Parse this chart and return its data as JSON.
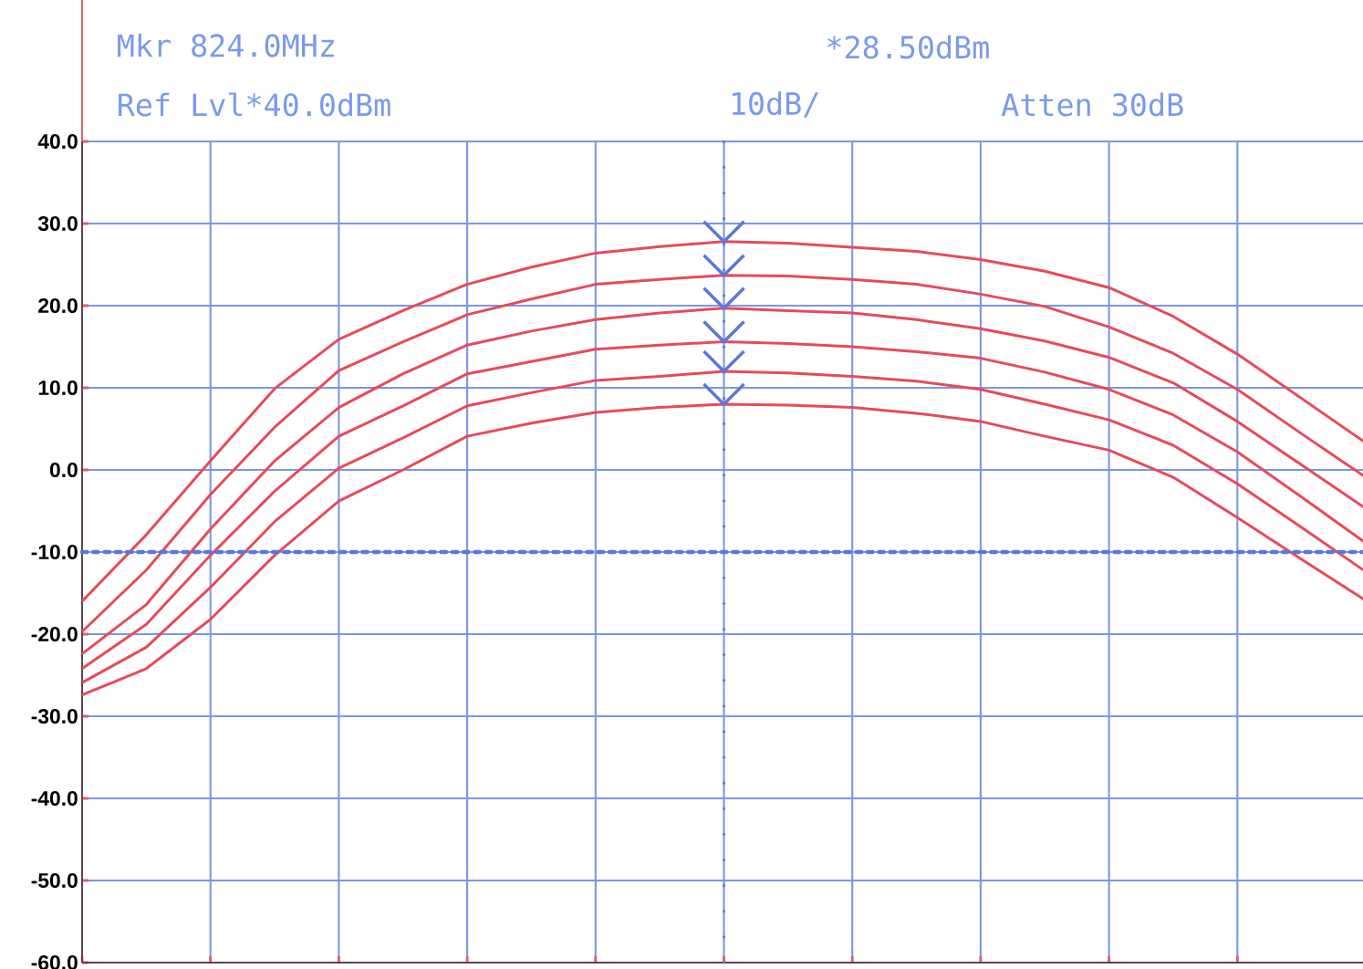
{
  "chart_data": {
    "type": "line",
    "annotations": [
      "Mkr 824.0MHz",
      "*28.50dBm",
      "Ref Lvl*40.0dBm",
      "10dB/",
      "Atten 30dB"
    ],
    "categories": [
      null,
      null,
      null,
      null,
      null,
      null,
      null,
      null,
      null,
      null,
      null,
      null,
      null,
      null,
      null,
      null,
      null,
      null,
      null,
      null,
      null
    ],
    "series": [
      {
        "color": "#e84a5a",
        "values": [
          -16,
          -7.9,
          1.1,
          9.9,
          15.9,
          19.4,
          22.6,
          24.7,
          26.4,
          27.2,
          27.8,
          27.6,
          27.1,
          26.6,
          25.6,
          24.2,
          22.2,
          18.7,
          14.1,
          8.7,
          3.3
        ]
      },
      {
        "color": "#e84a5a",
        "values": [
          -19.7,
          -12.2,
          -3.0,
          5.2,
          12.1,
          15.6,
          18.9,
          20.8,
          22.6,
          23.2,
          23.7,
          23.6,
          23.2,
          22.6,
          21.4,
          19.9,
          17.4,
          14.2,
          9.8,
          4.4,
          -0.9
        ]
      },
      {
        "color": "#e84a5a",
        "values": [
          -22.4,
          -16.4,
          -7.2,
          1.1,
          7.6,
          11.7,
          15.2,
          16.9,
          18.3,
          19.1,
          19.7,
          19.4,
          19.1,
          18.3,
          17.2,
          15.7,
          13.7,
          10.6,
          5.9,
          0.6,
          -4.7
        ]
      },
      {
        "color": "#e84a5a",
        "values": [
          -24.2,
          -18.8,
          -10.4,
          -2.6,
          4.1,
          7.8,
          11.7,
          13.2,
          14.7,
          15.2,
          15.6,
          15.4,
          15.0,
          14.4,
          13.6,
          11.9,
          9.8,
          6.7,
          2.2,
          -3.3,
          -8.9
        ]
      },
      {
        "color": "#e84a5a",
        "values": [
          -25.9,
          -21.6,
          -14.3,
          -6.3,
          0.2,
          3.9,
          7.8,
          9.4,
          10.9,
          11.4,
          12.0,
          11.8,
          11.4,
          10.8,
          9.8,
          8.0,
          6.1,
          3.0,
          -1.7,
          -7.0,
          -12.4
        ]
      },
      {
        "color": "#e84a5a",
        "values": [
          -27.4,
          -24.2,
          -18.2,
          -10.4,
          -3.8,
          0,
          4.1,
          5.7,
          7.0,
          7.6,
          8.0,
          7.9,
          7.6,
          6.9,
          5.9,
          4.1,
          2.4,
          -0.9,
          -5.8,
          -10.9,
          -15.9
        ]
      }
    ],
    "ylim": [
      -60,
      40
    ],
    "yticks": [
      {
        "value": 40,
        "label": "40.0"
      },
      {
        "value": 30,
        "label": "30.0"
      },
      {
        "value": 20,
        "label": "20.0"
      },
      {
        "value": 10,
        "label": "10.0"
      },
      {
        "value": 0,
        "label": "0.0"
      },
      {
        "value": -10,
        "label": "-10.0"
      },
      {
        "value": -20,
        "label": "-20.0"
      },
      {
        "value": -30,
        "label": "-30.0"
      },
      {
        "value": -40,
        "label": "-40.0"
      },
      {
        "value": -50,
        "label": "-50.0"
      },
      {
        "value": -60,
        "label": "-60.0"
      }
    ],
    "tick_labels": "y",
    "grid": true,
    "marker": "none",
    "line_style": "solid",
    "ref_lines": [
      {
        "axis": "y",
        "value": -10,
        "color": "#5b78d8",
        "line_style": "dotted"
      }
    ]
  }
}
